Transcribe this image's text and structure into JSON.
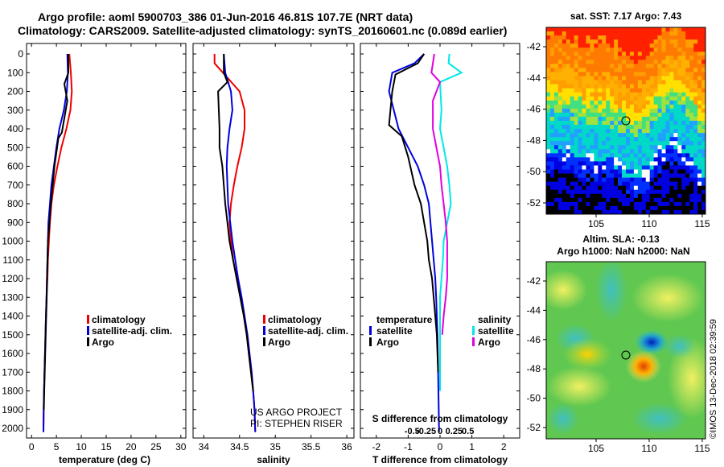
{
  "header": {
    "line1": "Argo profile: aoml 5900703_386 01-Jun-2016 46.81S 107.7E (NRT data)",
    "line2": "Climatology: CARS2009. Satellite-adjusted climatology: synTS_20160601.nc (0.089d earlier)"
  },
  "depth_ticks": [
    "0",
    "100",
    "200",
    "300",
    "400",
    "500",
    "600",
    "700",
    "800",
    "900",
    "1000",
    "1100",
    "1200",
    "1300",
    "1400",
    "1500",
    "1600",
    "1700",
    "1800",
    "1900",
    "2000"
  ],
  "panels": {
    "temperature": {
      "xlabel": "temperature (deg C)",
      "ticks": [
        "0",
        "5",
        "10",
        "15",
        "20",
        "25",
        "30"
      ],
      "legend": [
        "climatology",
        "satellite-adj. clim.",
        "Argo"
      ]
    },
    "salinity": {
      "xlabel": "salinity",
      "ticks": [
        "34",
        "34.5",
        "35",
        "35.5",
        "36"
      ],
      "legend": [
        "climatology",
        "satellite-adj. clim.",
        "Argo"
      ],
      "credit1": "US ARGO PROJECT",
      "credit2": "PI: STEPHEN RISER"
    },
    "difference": {
      "xlabel": "T difference from climatology",
      "xlabel_top": "S difference from climatology",
      "ticks": [
        "-2",
        "-1",
        "0",
        "1",
        "2"
      ],
      "top_ticks": [
        "-0.5",
        "-0.25",
        "0",
        "0.25",
        "0.5"
      ],
      "legend_temp_title": "temperature",
      "legend_sal_title": "salinity",
      "legend_temp": [
        "satellite",
        "Argo"
      ],
      "legend_sal": [
        "satellite",
        "Argo"
      ]
    }
  },
  "maps": {
    "sst": {
      "title": "sat. SST: 7.17 Argo: 7.43",
      "yticks": [
        "-42",
        "-44",
        "-46",
        "-48",
        "-50",
        "-52"
      ],
      "xticks": [
        "105",
        "110",
        "115"
      ]
    },
    "sla": {
      "title1": "Altim. SLA: -0.13",
      "title2": "Argo h1000: NaN h2000: NaN",
      "yticks": [
        "-42",
        "-44",
        "-46",
        "-48",
        "-50",
        "-52"
      ],
      "xticks": [
        "105",
        "110",
        "115"
      ]
    }
  },
  "stamp": "©IMOS 13-Dec-2018 02:39:59",
  "colors": {
    "climatology": "#ee0000",
    "satellite": "#0000dd",
    "argo": "#000000",
    "sat_salinity": "#00e8e8",
    "argo_salinity": "#e000e0"
  },
  "chart_data": [
    {
      "type": "line",
      "title": "",
      "xlabel": "temperature (deg C)",
      "ylabel": "",
      "xlim": [
        -1,
        31
      ],
      "ylim": [
        2050,
        0
      ],
      "series": [
        {
          "name": "climatology",
          "color": "#ee0000",
          "x": [
            7.6,
            7.9,
            8.1,
            7.8,
            7.0,
            6.0,
            5.2,
            4.5,
            4.0,
            3.7,
            3.5,
            3.3,
            3.2,
            3.0,
            2.9,
            2.8,
            2.7,
            2.6,
            2.5,
            2.45,
            2.4
          ],
          "y": [
            0,
            100,
            200,
            300,
            400,
            500,
            600,
            700,
            800,
            900,
            1000,
            1100,
            1200,
            1300,
            1400,
            1500,
            1600,
            1700,
            1800,
            1900,
            2020
          ]
        },
        {
          "name": "satellite-adj. clim.",
          "color": "#0000dd",
          "x": [
            7.2,
            7.3,
            7.1,
            6.5,
            5.6,
            5.0,
            4.5,
            4.0,
            3.7,
            3.4,
            3.3,
            3.2,
            3.1,
            3.0,
            2.9,
            2.8,
            2.7,
            2.6,
            2.5,
            2.45,
            2.4
          ],
          "y": [
            0,
            100,
            200,
            300,
            400,
            500,
            600,
            700,
            800,
            900,
            1000,
            1100,
            1200,
            1300,
            1400,
            1500,
            1600,
            1700,
            1800,
            1900,
            2020
          ]
        },
        {
          "name": "Argo",
          "color": "#000000",
          "x": [
            7.4,
            7.4,
            6.6,
            7.2,
            6.1,
            5.4,
            4.6,
            3.9,
            3.6,
            3.3,
            3.2,
            3.1,
            3.05,
            2.95,
            2.85,
            2.75,
            2.65,
            2.55,
            2.48
          ],
          "y": [
            0,
            100,
            160,
            250,
            420,
            450,
            600,
            800,
            900,
            1000,
            1100,
            1200,
            1300,
            1400,
            1500,
            1600,
            1700,
            1800,
            1900
          ]
        }
      ]
    },
    {
      "type": "line",
      "title": "",
      "xlabel": "salinity",
      "ylabel": "",
      "xlim": [
        33.85,
        36.1
      ],
      "ylim": [
        2050,
        0
      ],
      "series": [
        {
          "name": "climatology",
          "color": "#ee0000",
          "x": [
            34.15,
            34.15,
            34.5,
            34.57,
            34.57,
            34.53,
            34.47,
            34.42,
            34.38,
            34.36,
            34.38,
            34.41,
            34.46,
            34.51,
            34.56,
            34.6,
            34.63,
            34.66,
            34.69,
            34.71,
            34.72
          ],
          "y": [
            0,
            50,
            200,
            300,
            400,
            500,
            600,
            700,
            800,
            900,
            1000,
            1100,
            1200,
            1300,
            1400,
            1500,
            1600,
            1700,
            1800,
            1900,
            2020
          ]
        },
        {
          "name": "satellite-adj. clim.",
          "color": "#0000dd",
          "x": [
            34.28,
            34.3,
            34.38,
            34.4,
            34.36,
            34.33,
            34.32,
            34.33,
            34.34,
            34.37,
            34.4,
            34.44,
            34.48,
            34.53,
            34.57,
            34.61,
            34.64,
            34.67,
            34.69,
            34.71,
            34.72
          ],
          "y": [
            0,
            100,
            200,
            300,
            400,
            500,
            600,
            700,
            800,
            900,
            1000,
            1100,
            1200,
            1300,
            1400,
            1500,
            1600,
            1700,
            1800,
            1900,
            2020
          ]
        },
        {
          "name": "Argo",
          "color": "#000000",
          "x": [
            34.28,
            34.28,
            34.33,
            34.2,
            34.22,
            34.22,
            34.26,
            34.28,
            34.3,
            34.33,
            34.36,
            34.41,
            34.46,
            34.51,
            34.56,
            34.6,
            34.63,
            34.66,
            34.69
          ],
          "y": [
            0,
            100,
            150,
            200,
            400,
            500,
            600,
            700,
            800,
            900,
            1000,
            1100,
            1200,
            1300,
            1400,
            1500,
            1600,
            1700,
            1800
          ]
        }
      ]
    },
    {
      "type": "line",
      "title": "",
      "xlabel": "T difference from climatology",
      "ylabel": "",
      "xlim": [
        -2.5,
        2.5
      ],
      "ylim": [
        2050,
        0
      ],
      "series": [
        {
          "name": "temperature satellite",
          "color": "#0000dd",
          "x": [
            -0.5,
            -0.8,
            -1.5,
            -1.6,
            -1.3,
            -1.0,
            -0.7,
            -0.5,
            -0.35,
            -0.3,
            -0.25,
            -0.2,
            -0.15,
            -0.12,
            -0.1,
            -0.08,
            -0.07,
            -0.06,
            -0.05,
            -0.04,
            -0.03
          ],
          "y": [
            0,
            50,
            100,
            200,
            400,
            500,
            600,
            700,
            800,
            900,
            1000,
            1100,
            1200,
            1300,
            1400,
            1500,
            1600,
            1700,
            1800,
            1900,
            2020
          ]
        },
        {
          "name": "temperature Argo",
          "color": "#000000",
          "x": [
            -0.5,
            -0.7,
            -1.4,
            -1.5,
            -1.6,
            -1.2,
            -1.0,
            -0.8,
            -0.6,
            -0.5,
            -0.4,
            -0.35,
            -0.25,
            -0.2,
            -0.15,
            -0.1,
            -0.08,
            -0.06
          ],
          "y": [
            0,
            50,
            110,
            200,
            380,
            440,
            550,
            700,
            800,
            900,
            1000,
            1100,
            1200,
            1300,
            1400,
            1500,
            1600,
            1700
          ]
        },
        {
          "name": "salinity satellite",
          "color": "#00e8e8",
          "x": [
            0.13,
            0.12,
            0.3,
            0.0,
            0.02,
            0.0,
            0.05,
            0.1,
            0.13,
            0.15,
            0.05,
            0.04,
            0.02,
            0.0,
            0.0,
            0.0,
            0.0,
            0.0,
            0.0
          ],
          "y": [
            0,
            50,
            100,
            150,
            300,
            400,
            500,
            600,
            700,
            800,
            1000,
            1100,
            1200,
            1300,
            1400,
            1500,
            1600,
            1700,
            1800
          ]
        },
        {
          "name": "salinity Argo",
          "color": "#e000e0",
          "x": [
            -0.08,
            -0.12,
            0.0,
            -0.1,
            -0.1,
            -0.05,
            0.0,
            0.02,
            0.05,
            0.08,
            0.1,
            0.1,
            0.1,
            0.08,
            0.05,
            0.03
          ],
          "y": [
            0,
            100,
            150,
            250,
            400,
            500,
            600,
            700,
            800,
            900,
            1000,
            1100,
            1200,
            1300,
            1400,
            1500
          ]
        }
      ]
    }
  ]
}
